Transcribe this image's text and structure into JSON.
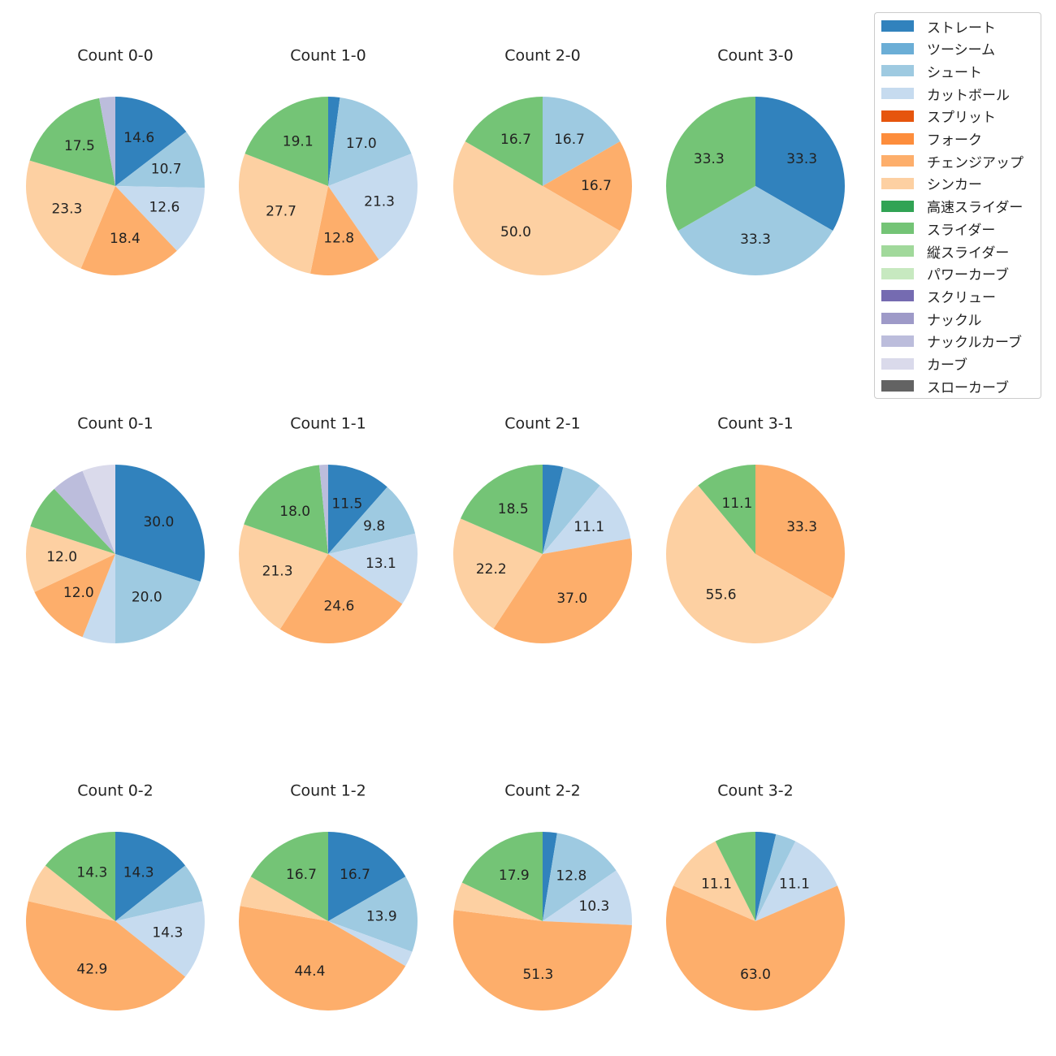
{
  "chart_data": {
    "type": "pie",
    "legend_position": "top-right",
    "legend": [
      {
        "name": "ストレート",
        "color": "#3182bd"
      },
      {
        "name": "ツーシーム",
        "color": "#6baed6"
      },
      {
        "name": "シュート",
        "color": "#9ecae1"
      },
      {
        "name": "カットボール",
        "color": "#c6dbef"
      },
      {
        "name": "スプリット",
        "color": "#e6550d"
      },
      {
        "name": "フォーク",
        "color": "#fd8d3c"
      },
      {
        "name": "チェンジアップ",
        "color": "#fdae6b"
      },
      {
        "name": "シンカー",
        "color": "#fdd0a2"
      },
      {
        "name": "高速スライダー",
        "color": "#31a354"
      },
      {
        "name": "スライダー",
        "color": "#74c476"
      },
      {
        "name": "縦スライダー",
        "color": "#a1d99b"
      },
      {
        "name": "パワーカーブ",
        "color": "#c7e9c0"
      },
      {
        "name": "スクリュー",
        "color": "#756bb1"
      },
      {
        "name": "ナックル",
        "color": "#9e9ac8"
      },
      {
        "name": "ナックルカーブ",
        "color": "#bcbddc"
      },
      {
        "name": "カーブ",
        "color": "#dadaeb"
      },
      {
        "name": "スローカーブ",
        "color": "#636363"
      }
    ],
    "charts": [
      {
        "title": "Count 0-0",
        "slices": [
          {
            "pitch": "ストレート",
            "value": 14.6,
            "label": "14.6"
          },
          {
            "pitch": "シュート",
            "value": 10.7,
            "label": "10.7"
          },
          {
            "pitch": "カットボール",
            "value": 12.6,
            "label": "12.6"
          },
          {
            "pitch": "チェンジアップ",
            "value": 18.4,
            "label": "18.4"
          },
          {
            "pitch": "シンカー",
            "value": 23.3,
            "label": "23.3"
          },
          {
            "pitch": "スライダー",
            "value": 17.5,
            "label": "17.5"
          },
          {
            "pitch": "ナックルカーブ",
            "value": 2.9,
            "label": ""
          }
        ]
      },
      {
        "title": "Count 1-0",
        "slices": [
          {
            "pitch": "ストレート",
            "value": 2.1,
            "label": ""
          },
          {
            "pitch": "シュート",
            "value": 17.0,
            "label": "17.0"
          },
          {
            "pitch": "カットボール",
            "value": 21.3,
            "label": "21.3"
          },
          {
            "pitch": "チェンジアップ",
            "value": 12.8,
            "label": "12.8"
          },
          {
            "pitch": "シンカー",
            "value": 27.7,
            "label": "27.7"
          },
          {
            "pitch": "スライダー",
            "value": 19.1,
            "label": "19.1"
          }
        ]
      },
      {
        "title": "Count 2-0",
        "slices": [
          {
            "pitch": "シュート",
            "value": 16.7,
            "label": "16.7"
          },
          {
            "pitch": "チェンジアップ",
            "value": 16.7,
            "label": "16.7"
          },
          {
            "pitch": "シンカー",
            "value": 50.0,
            "label": "50.0"
          },
          {
            "pitch": "スライダー",
            "value": 16.7,
            "label": "16.7"
          }
        ]
      },
      {
        "title": "Count 3-0",
        "slices": [
          {
            "pitch": "ストレート",
            "value": 33.3,
            "label": "33.3"
          },
          {
            "pitch": "シュート",
            "value": 33.3,
            "label": "33.3"
          },
          {
            "pitch": "スライダー",
            "value": 33.3,
            "label": "33.3"
          }
        ]
      },
      {
        "title": "Count 0-1",
        "slices": [
          {
            "pitch": "ストレート",
            "value": 30.0,
            "label": "30.0"
          },
          {
            "pitch": "シュート",
            "value": 20.0,
            "label": "20.0"
          },
          {
            "pitch": "カットボール",
            "value": 6.0,
            "label": ""
          },
          {
            "pitch": "チェンジアップ",
            "value": 12.0,
            "label": "12.0"
          },
          {
            "pitch": "シンカー",
            "value": 12.0,
            "label": "12.0"
          },
          {
            "pitch": "スライダー",
            "value": 8.0,
            "label": ""
          },
          {
            "pitch": "ナックルカーブ",
            "value": 6.0,
            "label": ""
          },
          {
            "pitch": "カーブ",
            "value": 6.0,
            "label": ""
          }
        ]
      },
      {
        "title": "Count 1-1",
        "slices": [
          {
            "pitch": "ストレート",
            "value": 11.5,
            "label": "11.5"
          },
          {
            "pitch": "シュート",
            "value": 9.8,
            "label": "9.8"
          },
          {
            "pitch": "カットボール",
            "value": 13.1,
            "label": "13.1"
          },
          {
            "pitch": "チェンジアップ",
            "value": 24.6,
            "label": "24.6"
          },
          {
            "pitch": "シンカー",
            "value": 21.3,
            "label": "21.3"
          },
          {
            "pitch": "スライダー",
            "value": 18.0,
            "label": "18.0"
          },
          {
            "pitch": "ナックルカーブ",
            "value": 1.6,
            "label": ""
          }
        ]
      },
      {
        "title": "Count 2-1",
        "slices": [
          {
            "pitch": "ストレート",
            "value": 3.7,
            "label": ""
          },
          {
            "pitch": "シュート",
            "value": 7.4,
            "label": ""
          },
          {
            "pitch": "カットボール",
            "value": 11.1,
            "label": "11.1"
          },
          {
            "pitch": "チェンジアップ",
            "value": 37.0,
            "label": "37.0"
          },
          {
            "pitch": "シンカー",
            "value": 22.2,
            "label": "22.2"
          },
          {
            "pitch": "スライダー",
            "value": 18.5,
            "label": "18.5"
          }
        ]
      },
      {
        "title": "Count 3-1",
        "slices": [
          {
            "pitch": "チェンジアップ",
            "value": 33.3,
            "label": "33.3"
          },
          {
            "pitch": "シンカー",
            "value": 55.6,
            "label": "55.6"
          },
          {
            "pitch": "スライダー",
            "value": 11.1,
            "label": "11.1"
          }
        ]
      },
      {
        "title": "Count 0-2",
        "slices": [
          {
            "pitch": "ストレート",
            "value": 14.3,
            "label": "14.3"
          },
          {
            "pitch": "シュート",
            "value": 7.1,
            "label": ""
          },
          {
            "pitch": "カットボール",
            "value": 14.3,
            "label": "14.3"
          },
          {
            "pitch": "チェンジアップ",
            "value": 42.9,
            "label": "42.9"
          },
          {
            "pitch": "シンカー",
            "value": 7.1,
            "label": ""
          },
          {
            "pitch": "スライダー",
            "value": 14.3,
            "label": "14.3"
          }
        ]
      },
      {
        "title": "Count 1-2",
        "slices": [
          {
            "pitch": "ストレート",
            "value": 16.7,
            "label": "16.7"
          },
          {
            "pitch": "シュート",
            "value": 13.9,
            "label": "13.9"
          },
          {
            "pitch": "カットボール",
            "value": 2.8,
            "label": ""
          },
          {
            "pitch": "チェンジアップ",
            "value": 44.4,
            "label": "44.4"
          },
          {
            "pitch": "シンカー",
            "value": 5.6,
            "label": ""
          },
          {
            "pitch": "スライダー",
            "value": 16.7,
            "label": "16.7"
          }
        ]
      },
      {
        "title": "Count 2-2",
        "slices": [
          {
            "pitch": "ストレート",
            "value": 2.6,
            "label": ""
          },
          {
            "pitch": "シュート",
            "value": 12.8,
            "label": "12.8"
          },
          {
            "pitch": "カットボール",
            "value": 10.3,
            "label": "10.3"
          },
          {
            "pitch": "チェンジアップ",
            "value": 51.3,
            "label": "51.3"
          },
          {
            "pitch": "シンカー",
            "value": 5.1,
            "label": ""
          },
          {
            "pitch": "スライダー",
            "value": 17.9,
            "label": "17.9"
          }
        ]
      },
      {
        "title": "Count 3-2",
        "slices": [
          {
            "pitch": "ストレート",
            "value": 3.7,
            "label": ""
          },
          {
            "pitch": "シュート",
            "value": 3.7,
            "label": ""
          },
          {
            "pitch": "カットボール",
            "value": 11.1,
            "label": "11.1"
          },
          {
            "pitch": "チェンジアップ",
            "value": 63.0,
            "label": "63.0"
          },
          {
            "pitch": "シンカー",
            "value": 11.1,
            "label": "11.1"
          },
          {
            "pitch": "スライダー",
            "value": 7.4,
            "label": ""
          }
        ]
      }
    ]
  }
}
